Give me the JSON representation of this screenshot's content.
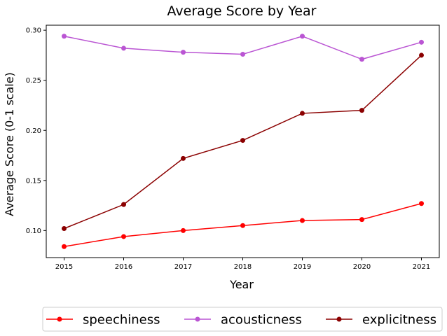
{
  "chart_data": {
    "type": "line",
    "title": "Average Score by Year",
    "xlabel": "Year",
    "ylabel": "Average Score (0-1 scale)",
    "x": [
      2015,
      2016,
      2017,
      2018,
      2019,
      2020,
      2021
    ],
    "ylim": [
      0.073,
      0.305
    ],
    "xlim": [
      2014.7,
      2021.3
    ],
    "yticks": [
      0.1,
      0.15,
      0.2,
      0.25,
      0.3
    ],
    "ytick_labels": [
      "0.10",
      "0.15",
      "0.20",
      "0.25",
      "0.30"
    ],
    "xtick_labels": [
      "2015",
      "2016",
      "2017",
      "2018",
      "2019",
      "2020",
      "2021"
    ],
    "grid": false,
    "legend_position": "bottom-center",
    "series": [
      {
        "name": "speechiness",
        "color": "#ff0000",
        "values": [
          0.084,
          0.094,
          0.1,
          0.105,
          0.11,
          0.111,
          0.127
        ]
      },
      {
        "name": "acousticness",
        "color": "#ba55d3",
        "values": [
          0.294,
          0.282,
          0.278,
          0.276,
          0.294,
          0.271,
          0.288
        ]
      },
      {
        "name": "explicitness",
        "color": "#8b0000",
        "values": [
          0.102,
          0.126,
          0.172,
          0.19,
          0.217,
          0.22,
          0.275
        ]
      }
    ]
  }
}
